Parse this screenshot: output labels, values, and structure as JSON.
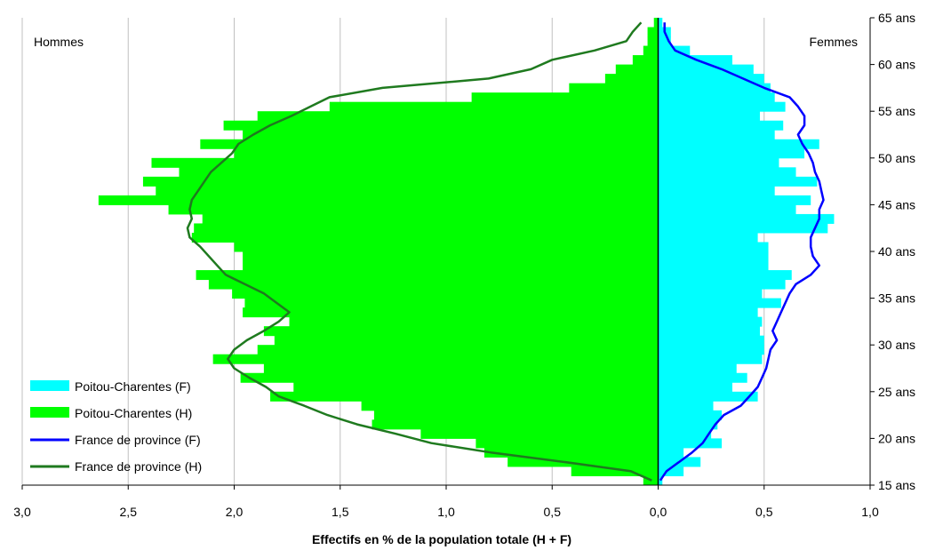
{
  "chart_data": {
    "type": "population-pyramid",
    "xlabel": "Effectifs en % de la population totale (H + F)",
    "left_label": "Hommes",
    "right_label": "Femmes",
    "x_ticks": [
      "3,0",
      "2,5",
      "2,0",
      "1,5",
      "1,0",
      "0,5",
      "0,0",
      "0,5",
      "1,0"
    ],
    "x_tick_values": [
      -3.0,
      -2.5,
      -2.0,
      -1.5,
      -1.0,
      -0.5,
      0.0,
      0.5,
      1.0
    ],
    "xlim": [
      -3.0,
      1.0
    ],
    "ylim": [
      15,
      65
    ],
    "y_ticks": [
      "15 ans",
      "20 ans",
      "25 ans",
      "30 ans",
      "35 ans",
      "40 ans",
      "45 ans",
      "50 ans",
      "55 ans",
      "60 ans",
      "65 ans"
    ],
    "y_tick_values": [
      15,
      20,
      25,
      30,
      35,
      40,
      45,
      50,
      55,
      60,
      65
    ],
    "grid": "vertical",
    "legend_position": "bottom-left",
    "series": [
      {
        "name": "Poitou-Charentes (F)",
        "kind": "bar",
        "color": "#00ffff",
        "ages": [
          16,
          17,
          18,
          19,
          20,
          21,
          22,
          23,
          24,
          25,
          26,
          27,
          28,
          29,
          30,
          31,
          32,
          33,
          34,
          35,
          36,
          37,
          38,
          39,
          40,
          41,
          42,
          43,
          44,
          45,
          46,
          47,
          48,
          49,
          50,
          51,
          52,
          53,
          54,
          55,
          56,
          57,
          58,
          59,
          60,
          61,
          62,
          63,
          64,
          65
        ],
        "values": [
          0.02,
          0.12,
          0.2,
          0.12,
          0.3,
          0.25,
          0.28,
          0.3,
          0.26,
          0.47,
          0.35,
          0.42,
          0.37,
          0.49,
          0.5,
          0.5,
          0.48,
          0.49,
          0.47,
          0.58,
          0.49,
          0.6,
          0.63,
          0.52,
          0.52,
          0.52,
          0.47,
          0.8,
          0.83,
          0.65,
          0.72,
          0.55,
          0.75,
          0.65,
          0.57,
          0.69,
          0.76,
          0.55,
          0.59,
          0.48,
          0.6,
          0.55,
          0.53,
          0.5,
          0.45,
          0.35,
          0.15,
          0.06,
          0.06,
          0.02
        ]
      },
      {
        "name": "Poitou-Charentes (H)",
        "kind": "bar",
        "color": "#00ff00",
        "ages": [
          16,
          17,
          18,
          19,
          20,
          21,
          22,
          23,
          24,
          25,
          26,
          27,
          28,
          29,
          30,
          31,
          32,
          33,
          34,
          35,
          36,
          37,
          38,
          39,
          40,
          41,
          42,
          43,
          44,
          45,
          46,
          47,
          48,
          49,
          50,
          51,
          52,
          53,
          54,
          55,
          56,
          57,
          58,
          59,
          60,
          61,
          62,
          63,
          64,
          65
        ],
        "values": [
          0.07,
          0.41,
          0.71,
          0.82,
          0.86,
          1.12,
          1.35,
          1.34,
          1.4,
          1.83,
          1.72,
          1.97,
          1.86,
          2.1,
          1.89,
          1.81,
          1.86,
          1.74,
          1.96,
          1.95,
          2.01,
          2.12,
          2.18,
          1.96,
          1.96,
          2.0,
          2.2,
          2.19,
          2.15,
          2.31,
          2.64,
          2.37,
          2.43,
          2.26,
          2.39,
          2.0,
          2.16,
          1.96,
          2.05,
          1.89,
          1.55,
          0.88,
          0.42,
          0.25,
          0.2,
          0.12,
          0.07,
          0.05,
          0.05,
          0.02
        ]
      },
      {
        "name": "France de province (F)",
        "kind": "line",
        "color": "#0000ff",
        "ages": [
          16,
          17,
          18,
          19,
          20,
          21,
          22,
          23,
          24,
          25,
          26,
          27,
          28,
          29,
          30,
          31,
          32,
          33,
          34,
          35,
          36,
          37,
          38,
          39,
          40,
          41,
          42,
          43,
          44,
          45,
          46,
          47,
          48,
          49,
          50,
          51,
          52,
          53,
          54,
          55,
          56,
          57,
          58,
          59,
          60,
          61,
          62,
          63,
          64,
          65
        ],
        "values": [
          0.01,
          0.04,
          0.1,
          0.16,
          0.21,
          0.24,
          0.27,
          0.31,
          0.39,
          0.43,
          0.47,
          0.49,
          0.51,
          0.52,
          0.53,
          0.56,
          0.54,
          0.56,
          0.58,
          0.6,
          0.62,
          0.65,
          0.72,
          0.76,
          0.73,
          0.72,
          0.72,
          0.74,
          0.76,
          0.76,
          0.78,
          0.77,
          0.76,
          0.74,
          0.73,
          0.71,
          0.68,
          0.66,
          0.69,
          0.69,
          0.66,
          0.62,
          0.5,
          0.4,
          0.3,
          0.18,
          0.08,
          0.05,
          0.03,
          0.03
        ]
      },
      {
        "name": "France de province (H)",
        "kind": "line",
        "color": "#1f7a1f",
        "ages": [
          16,
          17,
          18,
          19,
          20,
          21,
          22,
          23,
          24,
          25,
          26,
          27,
          28,
          29,
          30,
          31,
          32,
          33,
          34,
          35,
          36,
          37,
          38,
          39,
          40,
          41,
          42,
          43,
          44,
          45,
          46,
          47,
          48,
          49,
          50,
          51,
          52,
          53,
          54,
          55,
          56,
          57,
          58,
          59,
          60,
          61,
          62,
          63,
          64,
          65
        ],
        "values": [
          0.03,
          0.13,
          0.45,
          0.79,
          1.07,
          1.24,
          1.42,
          1.56,
          1.67,
          1.79,
          1.85,
          1.93,
          2.0,
          2.03,
          2.0,
          1.94,
          1.86,
          1.79,
          1.74,
          1.8,
          1.86,
          1.95,
          2.04,
          2.08,
          2.12,
          2.16,
          2.21,
          2.22,
          2.2,
          2.21,
          2.2,
          2.17,
          2.14,
          2.11,
          2.06,
          2.01,
          1.98,
          1.91,
          1.83,
          1.73,
          1.64,
          1.55,
          1.3,
          0.8,
          0.6,
          0.5,
          0.3,
          0.15,
          0.12,
          0.08
        ]
      }
    ]
  }
}
